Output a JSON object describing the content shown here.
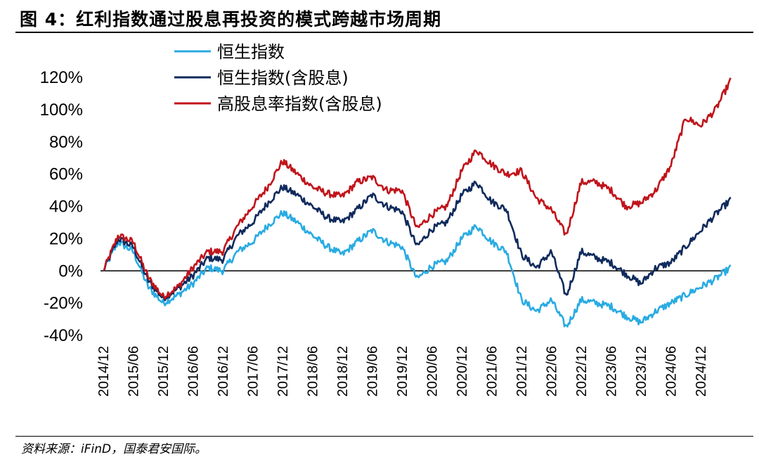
{
  "header": {
    "title": "图 4：红利指数通过股息再投资的模式跨越市场周期"
  },
  "footer": {
    "source": "资料来源：iFinD，国泰君安国际。"
  },
  "colors": {
    "hsi": "#29ABE2",
    "hsi_tr": "#0F2A5C",
    "high_div": "#C0141B"
  },
  "chart_data": {
    "type": "line",
    "title": "",
    "xlabel": "",
    "ylabel": "",
    "ylim": [
      -40,
      120
    ],
    "yticks": [
      "-40%",
      "-20%",
      "0%",
      "20%",
      "40%",
      "60%",
      "80%",
      "100%",
      "120%"
    ],
    "xticks": [
      "2014/12",
      "2015/06",
      "2015/12",
      "2016/06",
      "2016/12",
      "2017/06",
      "2017/12",
      "2018/06",
      "2018/12",
      "2019/06",
      "2019/12",
      "2020/06",
      "2020/12",
      "2021/06",
      "2021/12",
      "2022/06",
      "2022/12",
      "2023/06",
      "2023/12",
      "2024/06",
      "2024/12"
    ],
    "legend_position": "top-left",
    "grid": false,
    "x": [
      "2014/12",
      "2015/03",
      "2015/06",
      "2015/09",
      "2015/12",
      "2016/03",
      "2016/06",
      "2016/09",
      "2016/12",
      "2017/03",
      "2017/06",
      "2017/09",
      "2017/12",
      "2018/03",
      "2018/06",
      "2018/09",
      "2018/12",
      "2019/03",
      "2019/06",
      "2019/09",
      "2019/12",
      "2020/03",
      "2020/06",
      "2020/09",
      "2020/12",
      "2021/03",
      "2021/06",
      "2021/09",
      "2021/12",
      "2022/03",
      "2022/06",
      "2022/09",
      "2022/12",
      "2023/03",
      "2023/06",
      "2023/09",
      "2023/12",
      "2024/03",
      "2024/06",
      "2024/09",
      "2024/12",
      "2025/03",
      "2025/06"
    ],
    "series": [
      {
        "name": "恒生指数",
        "color": "#29ABE2",
        "values": [
          0,
          18,
          12,
          -10,
          -20,
          -15,
          -8,
          2,
          0,
          12,
          18,
          28,
          36,
          30,
          22,
          15,
          10,
          18,
          25,
          18,
          15,
          -5,
          3,
          6,
          20,
          28,
          18,
          12,
          -18,
          -25,
          -18,
          -35,
          -18,
          -20,
          -22,
          -28,
          -32,
          -25,
          -20,
          -15,
          -10,
          -5,
          2
        ]
      },
      {
        "name": "恒生指数(含股息)",
        "color": "#0F2A5C",
        "values": [
          0,
          20,
          15,
          -6,
          -17,
          -11,
          -3,
          8,
          7,
          22,
          30,
          42,
          52,
          47,
          40,
          33,
          30,
          38,
          47,
          40,
          37,
          15,
          26,
          30,
          47,
          55,
          43,
          38,
          10,
          2,
          12,
          -16,
          12,
          8,
          5,
          -2,
          -8,
          2,
          5,
          15,
          25,
          35,
          44
        ]
      },
      {
        "name": "高股息率指数(含股息)",
        "color": "#C0141B",
        "values": [
          0,
          22,
          18,
          -4,
          -16,
          -10,
          2,
          12,
          12,
          28,
          40,
          52,
          68,
          60,
          52,
          48,
          46,
          55,
          58,
          50,
          50,
          26,
          35,
          40,
          62,
          75,
          66,
          60,
          62,
          45,
          38,
          22,
          55,
          55,
          50,
          40,
          42,
          50,
          65,
          95,
          90,
          100,
          118
        ]
      }
    ]
  }
}
